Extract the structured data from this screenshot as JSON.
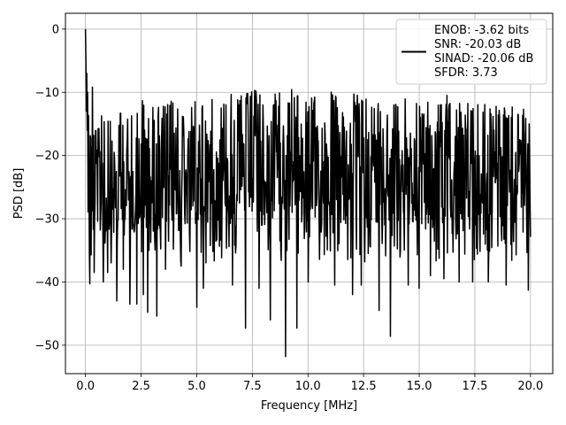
{
  "chart_data": {
    "type": "line",
    "title": "",
    "xlabel": "Frequency [MHz]",
    "ylabel": "PSD [dB]",
    "xlim": [
      -0.9,
      21.0
    ],
    "ylim": [
      -54.5,
      2.5
    ],
    "grid": true,
    "legend_position": "top-right",
    "x_ticks": [
      0.0,
      2.5,
      5.0,
      7.5,
      10.0,
      12.5,
      15.0,
      17.5,
      20.0
    ],
    "x_tick_labels": [
      "0.0",
      "2.5",
      "5.0",
      "7.5",
      "10.0",
      "12.5",
      "15.0",
      "17.5",
      "20.0"
    ],
    "y_ticks": [
      0,
      -10,
      -20,
      -30,
      -40,
      -50
    ],
    "y_tick_labels": [
      "0",
      "−10",
      "−20",
      "−30",
      "−40",
      "−50"
    ],
    "legend": [
      "ENOB: -3.62 bits",
      "SNR: -20.03 dB",
      "SINAD: -20.06 dB",
      "SFDR: 3.73"
    ],
    "series": [
      {
        "color": "#000000",
        "x_start": 0.0,
        "x_end": 20.0,
        "num_points": 1024,
        "peak": {
          "x": 0.0,
          "y": 0.0
        },
        "envelope_top": [
          [
            0.0,
            -4
          ],
          [
            0.5,
            -11
          ],
          [
            1.0,
            -14
          ],
          [
            1.5,
            -13
          ],
          [
            2.0,
            -13
          ],
          [
            2.5,
            -11
          ],
          [
            3.0,
            -12
          ],
          [
            3.5,
            -12
          ],
          [
            4.0,
            -11
          ],
          [
            4.5,
            -12
          ],
          [
            5.0,
            -11
          ],
          [
            5.5,
            -10
          ],
          [
            6.0,
            -11
          ],
          [
            6.5,
            -10
          ],
          [
            7.0,
            -10
          ],
          [
            7.5,
            -9
          ],
          [
            8.0,
            -11
          ],
          [
            8.5,
            -10
          ],
          [
            9.0,
            -10
          ],
          [
            9.5,
            -9
          ],
          [
            10.0,
            -11
          ],
          [
            10.5,
            -10
          ],
          [
            11.0,
            -9
          ],
          [
            11.5,
            -12
          ],
          [
            12.0,
            -10
          ],
          [
            12.5,
            -11
          ],
          [
            13.0,
            -11
          ],
          [
            13.5,
            -12
          ],
          [
            14.0,
            -11
          ],
          [
            14.5,
            -11
          ],
          [
            15.0,
            -12
          ],
          [
            15.5,
            -11
          ],
          [
            16.0,
            -10
          ],
          [
            16.5,
            -11
          ],
          [
            17.0,
            -11
          ],
          [
            17.5,
            -12
          ],
          [
            18.0,
            -11
          ],
          [
            18.5,
            -12
          ],
          [
            19.0,
            -12
          ],
          [
            19.5,
            -12
          ],
          [
            20.0,
            -13
          ]
        ],
        "deep_minima": [
          [
            0.2,
            -40.3
          ],
          [
            0.4,
            -38.5
          ],
          [
            0.8,
            -40
          ],
          [
            1.0,
            -38.5
          ],
          [
            1.4,
            -43
          ],
          [
            1.7,
            -38
          ],
          [
            2.0,
            -43.5
          ],
          [
            2.3,
            -43.5
          ],
          [
            2.6,
            -42
          ],
          [
            2.8,
            -44.8
          ],
          [
            3.2,
            -45.4
          ],
          [
            3.6,
            -38
          ],
          [
            4.3,
            -37.5
          ],
          [
            5.0,
            -44
          ],
          [
            5.3,
            -41
          ],
          [
            6.6,
            -40.5
          ],
          [
            7.2,
            -47.3
          ],
          [
            7.8,
            -41
          ],
          [
            8.3,
            -46
          ],
          [
            9.0,
            -51.8
          ],
          [
            9.5,
            -47.3
          ],
          [
            10.0,
            -40
          ],
          [
            11.2,
            -40.5
          ],
          [
            12.0,
            -42
          ],
          [
            12.4,
            -40.5
          ],
          [
            13.2,
            -44.5
          ],
          [
            13.7,
            -48.6
          ],
          [
            14.5,
            -40.5
          ],
          [
            15.0,
            -41
          ],
          [
            15.5,
            -39
          ],
          [
            16.1,
            -39.5
          ],
          [
            16.8,
            -40
          ],
          [
            17.4,
            -40
          ],
          [
            18.1,
            -40
          ],
          [
            18.9,
            -40.5
          ],
          [
            19.9,
            -41.3
          ]
        ]
      }
    ]
  }
}
